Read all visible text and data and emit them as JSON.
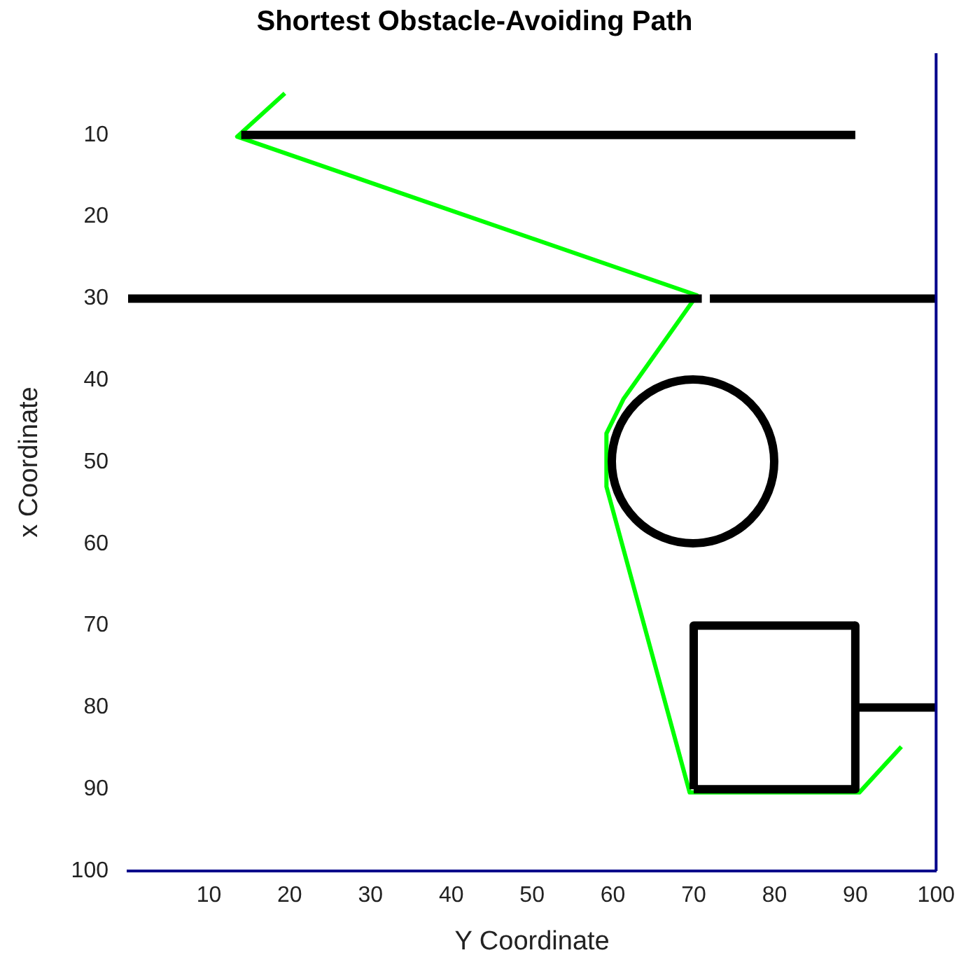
{
  "chart_data": {
    "type": "line",
    "title": "Shortest Obstacle-Avoiding Path",
    "xlabel": "Y Coordinate",
    "ylabel": "x Coordinate",
    "xlim": [
      0,
      100
    ],
    "xticks": [
      10,
      20,
      30,
      40,
      50,
      60,
      70,
      80,
      90,
      100
    ],
    "ylim": [
      100,
      0
    ],
    "yticks": [
      10,
      20,
      30,
      40,
      50,
      60,
      70,
      80,
      90,
      100
    ],
    "grid": false,
    "legend": false,
    "marker": "none",
    "line_style": "solid",
    "series": [
      {
        "color": "#000000",
        "x": [
          14,
          90
        ],
        "values": [
          10,
          10
        ]
      },
      {
        "color": "#000000",
        "x": [
          0,
          71
        ],
        "values": [
          30,
          30
        ]
      },
      {
        "color": "#000000",
        "x": [
          72,
          100
        ],
        "values": [
          30,
          30
        ]
      },
      {
        "color": "#000000",
        "x": [
          70,
          70,
          90
        ],
        "values": [
          90,
          70,
          70
        ]
      },
      {
        "color": "#000000",
        "x": [
          90,
          90,
          70
        ],
        "values": [
          70,
          90,
          90
        ]
      },
      {
        "color": "#000000",
        "x": [
          90,
          100
        ],
        "values": [
          80,
          80
        ]
      },
      {
        "color": "#00ff00",
        "x": [
          19.4,
          13.5,
          70.4,
          61.3,
          59.2,
          59.2,
          69.5,
          90.5,
          95.7
        ],
        "values": [
          4.9,
          10.2,
          29.6,
          42.3,
          46.5,
          53,
          90.4,
          90.4,
          84.8
        ]
      }
    ]
  }
}
